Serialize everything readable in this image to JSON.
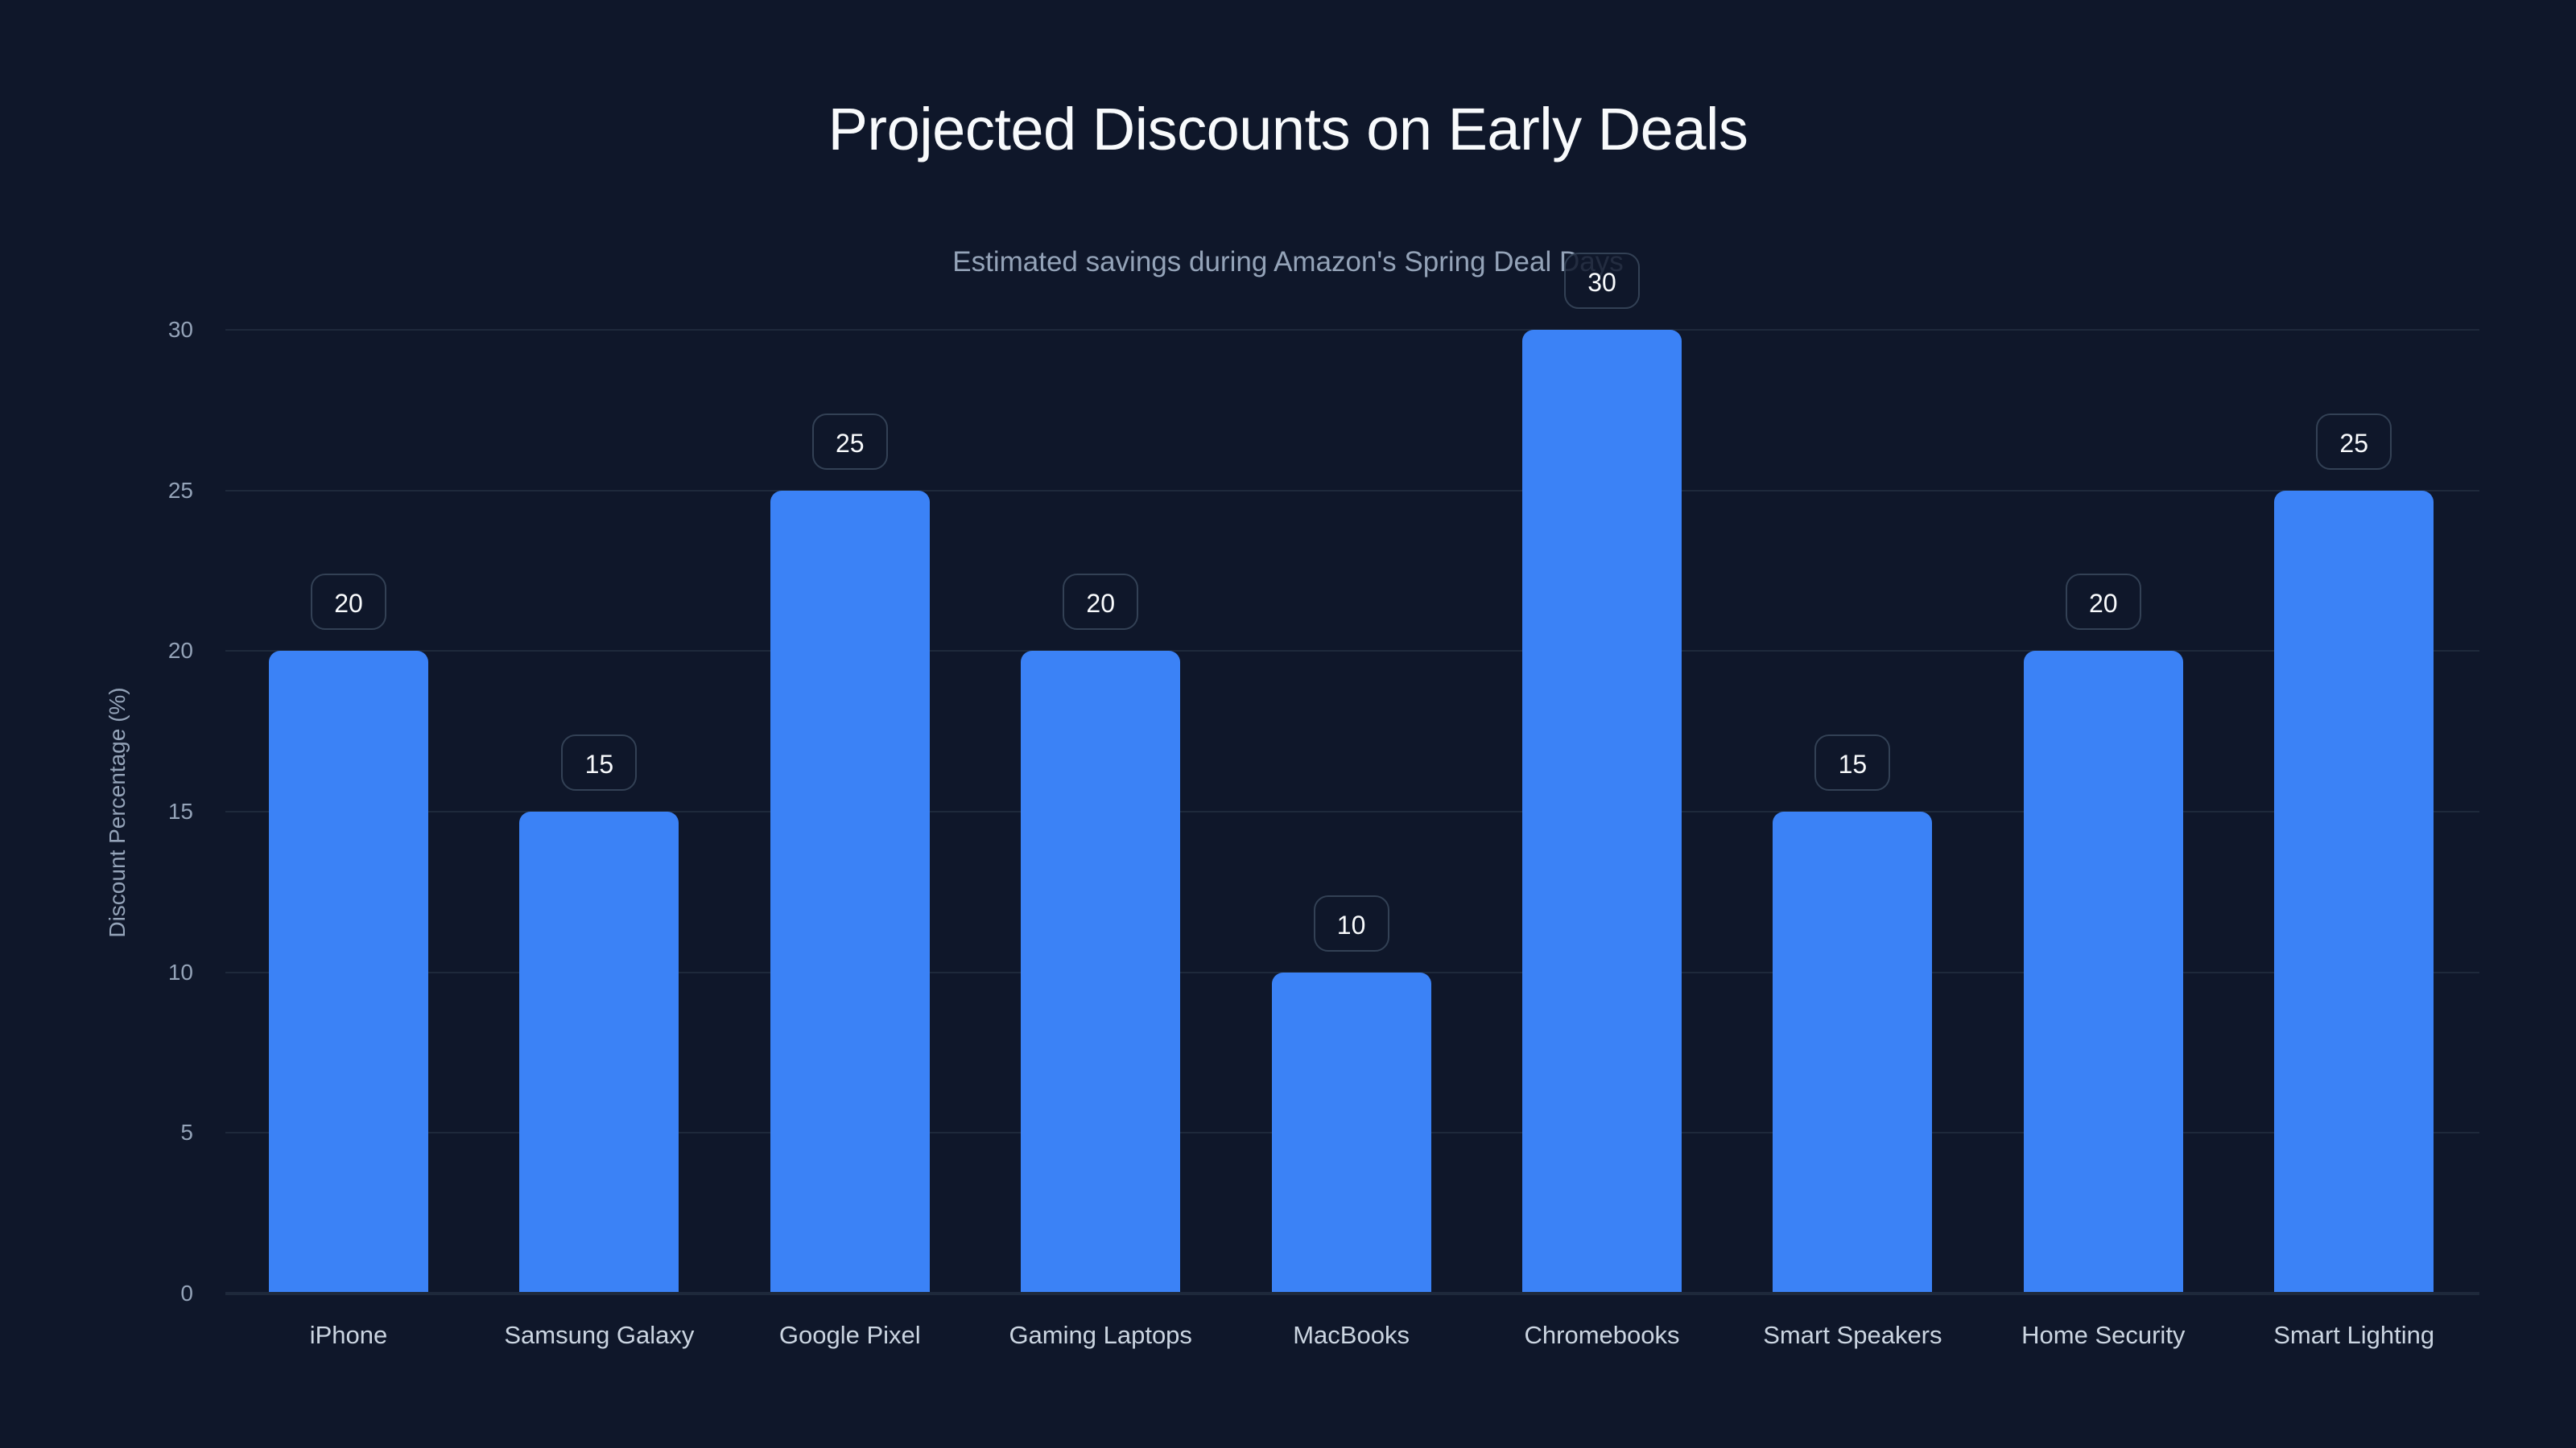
{
  "chart": {
    "title": "Projected Discounts on Early Deals",
    "subtitle": "Estimated savings during Amazon's Spring Deal Days",
    "ylabel": "Discount Percentage (%)",
    "yticks": [
      "0",
      "5",
      "10",
      "15",
      "20",
      "25",
      "30"
    ],
    "bar_color": "#3b82f6",
    "background": "#0f172a"
  },
  "chart_data": {
    "type": "bar",
    "title": "Projected Discounts on Early Deals",
    "subtitle": "Estimated savings during Amazon's Spring Deal Days",
    "xlabel": "",
    "ylabel": "Discount Percentage (%)",
    "ylim": [
      0,
      30
    ],
    "yticks": [
      0,
      5,
      10,
      15,
      20,
      25,
      30
    ],
    "grid": true,
    "legend": null,
    "categories": [
      "iPhone",
      "Samsung Galaxy",
      "Google Pixel",
      "Gaming Laptops",
      "MacBooks",
      "Chromebooks",
      "Smart Speakers",
      "Home Security",
      "Smart Lighting"
    ],
    "values": [
      20,
      15,
      25,
      20,
      10,
      30,
      15,
      20,
      25
    ],
    "data_labels": [
      "20",
      "15",
      "25",
      "20",
      "10",
      "30",
      "15",
      "20",
      "25"
    ]
  }
}
